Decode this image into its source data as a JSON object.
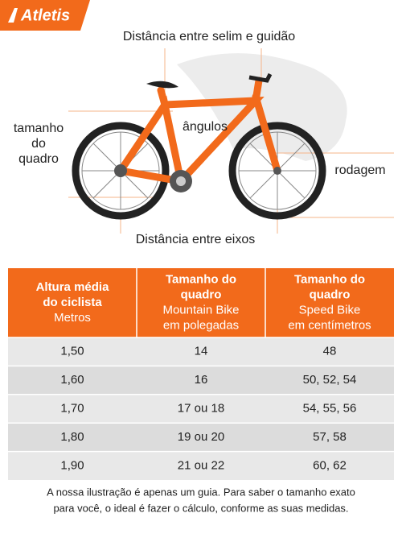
{
  "brand": "Atletis",
  "illustration": {
    "labels": {
      "saddle_handlebar": "Distância entre selim e guidão",
      "angles": "ângulos",
      "frame_size": [
        "tamanho",
        "do",
        "quadro"
      ],
      "wheels": "rodagem",
      "wheelbase": "Distância entre eixos"
    }
  },
  "table": {
    "header": [
      {
        "title": [
          "Altura média",
          "do ciclista"
        ],
        "subtitle": [
          "Metros"
        ]
      },
      {
        "title": [
          "Tamanho do",
          "quadro"
        ],
        "subtitle": [
          "Mountain Bike",
          "em polegadas"
        ]
      },
      {
        "title": [
          "Tamanho do",
          "quadro"
        ],
        "subtitle": [
          "Speed Bike",
          "em centímetros"
        ]
      }
    ],
    "rows": [
      [
        "1,50",
        "14",
        "48"
      ],
      [
        "1,60",
        "16",
        "50, 52, 54"
      ],
      [
        "1,70",
        "17 ou 18",
        "54, 55, 56"
      ],
      [
        "1,80",
        "19 ou 20",
        "57, 58"
      ],
      [
        "1,90",
        "21 ou 22",
        "60, 62"
      ]
    ]
  },
  "note": [
    "A nossa ilustração é apenas um guia. Para saber o tamanho exato",
    "para você, o ideal é fazer o cálculo, conforme as suas medidas."
  ]
}
